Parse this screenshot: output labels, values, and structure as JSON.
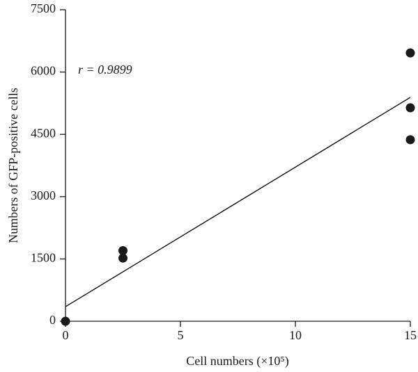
{
  "chart_data": {
    "type": "scatter",
    "xlabel": "Cell numbers (×10⁵)",
    "ylabel": "Numbers of GFP-positive cells",
    "annotation": "r = 0.9899",
    "series": [
      {
        "x": [
          0,
          2.5,
          2.5,
          15,
          15,
          15
        ],
        "values": [
          0,
          1700,
          1520,
          6460,
          5140,
          4370
        ],
        "color": "#1a1a1a"
      }
    ],
    "fit_line": {
      "x": [
        0,
        15
      ],
      "values": [
        350,
        5390
      ],
      "color": "#000000"
    },
    "xlim": [
      0,
      15
    ],
    "xticks": [
      0,
      5,
      10,
      15
    ],
    "ylim": [
      0,
      7500
    ],
    "yticks": [
      0,
      1500,
      3000,
      4500,
      6000,
      7500
    ],
    "grid": false
  }
}
